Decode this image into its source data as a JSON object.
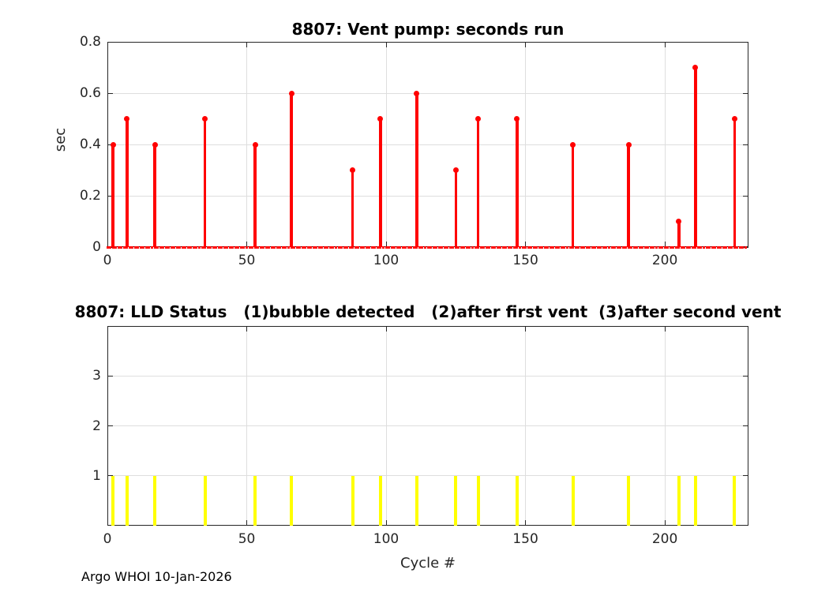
{
  "footer": {
    "credit": "Argo WHOI 10-Jan-2026"
  },
  "chart_data": [
    {
      "type": "stem",
      "title": "8807: Vent pump: seconds run",
      "ylabel": "sec",
      "series_name": "vent-pump-seconds-run",
      "series_color": "#ff0000",
      "xlim": [
        0,
        230
      ],
      "ylim": [
        0,
        0.8
      ],
      "xticks": [
        0,
        50,
        100,
        150,
        200
      ],
      "xtick_labels": [
        "0",
        "50",
        "100",
        "150",
        "200"
      ],
      "yticks": [
        0,
        0.2,
        0.4,
        0.6,
        0.8
      ],
      "ytick_labels": [
        "0",
        "0.2",
        "0.4",
        "0.6",
        "0.8"
      ],
      "grid": true,
      "marker": "filled-circle",
      "baseline": {
        "start": 0,
        "end": 229,
        "value": 0
      },
      "points": [
        {
          "x": 2,
          "y": 0.4
        },
        {
          "x": 7,
          "y": 0.5
        },
        {
          "x": 17,
          "y": 0.4
        },
        {
          "x": 35,
          "y": 0.5
        },
        {
          "x": 53,
          "y": 0.4
        },
        {
          "x": 66,
          "y": 0.6
        },
        {
          "x": 88,
          "y": 0.3
        },
        {
          "x": 98,
          "y": 0.5
        },
        {
          "x": 111,
          "y": 0.6
        },
        {
          "x": 125,
          "y": 0.3
        },
        {
          "x": 133,
          "y": 0.5
        },
        {
          "x": 147,
          "y": 0.5
        },
        {
          "x": 167,
          "y": 0.4
        },
        {
          "x": 187,
          "y": 0.4
        },
        {
          "x": 205,
          "y": 0.1
        },
        {
          "x": 211,
          "y": 0.7
        },
        {
          "x": 225,
          "y": 0.5
        }
      ]
    },
    {
      "type": "stem",
      "title": "8807: LLD Status   (1)bubble detected   (2)after first vent  (3)after second vent",
      "xlabel": "Cycle #",
      "series_name": "lld-status",
      "series_color": "#ffff00",
      "xlim": [
        0,
        230
      ],
      "ylim": [
        0,
        4
      ],
      "xticks": [
        0,
        50,
        100,
        150,
        200
      ],
      "xtick_labels": [
        "0",
        "50",
        "100",
        "150",
        "200"
      ],
      "yticks": [
        1,
        2,
        3
      ],
      "ytick_labels": [
        "1",
        "2",
        "3"
      ],
      "grid": true,
      "marker": "none",
      "points": [
        {
          "x": 2,
          "y": 1
        },
        {
          "x": 7,
          "y": 1
        },
        {
          "x": 17,
          "y": 1
        },
        {
          "x": 35,
          "y": 1
        },
        {
          "x": 53,
          "y": 1
        },
        {
          "x": 66,
          "y": 1
        },
        {
          "x": 88,
          "y": 1
        },
        {
          "x": 98,
          "y": 1
        },
        {
          "x": 111,
          "y": 1
        },
        {
          "x": 125,
          "y": 1
        },
        {
          "x": 133,
          "y": 1
        },
        {
          "x": 147,
          "y": 1
        },
        {
          "x": 167,
          "y": 1
        },
        {
          "x": 187,
          "y": 1
        },
        {
          "x": 205,
          "y": 1
        },
        {
          "x": 211,
          "y": 1
        },
        {
          "x": 225,
          "y": 1
        }
      ]
    }
  ]
}
